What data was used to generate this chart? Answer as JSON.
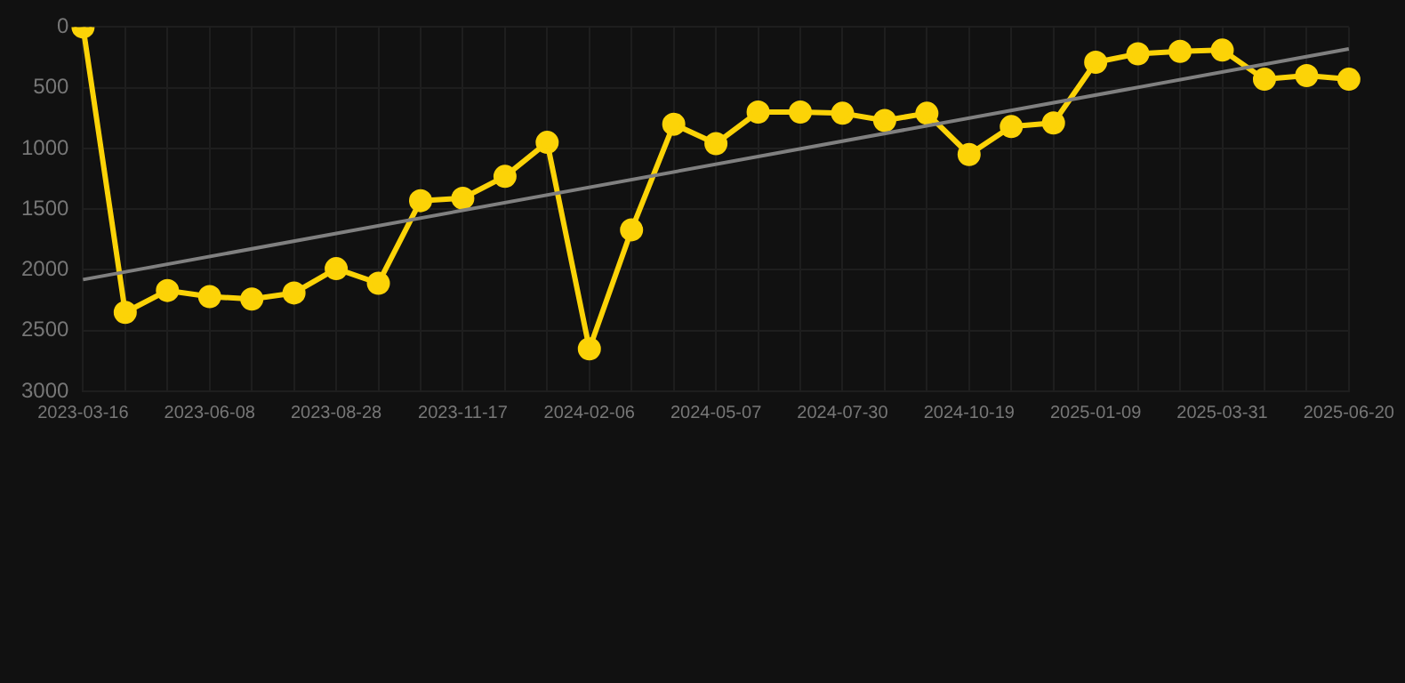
{
  "chart_data": {
    "type": "line",
    "categories": [
      "2023-03-16",
      null,
      null,
      "2023-06-08",
      null,
      null,
      "2023-08-28",
      null,
      null,
      "2023-11-17",
      null,
      null,
      "2024-02-06",
      null,
      null,
      "2024-05-07",
      null,
      null,
      "2024-07-30",
      null,
      null,
      "2024-10-19",
      null,
      null,
      "2025-01-09",
      null,
      null,
      "2025-03-31",
      null,
      null,
      "2025-06-20"
    ],
    "series": [
      {
        "color": "#fcd307",
        "marker": "circle",
        "values": [
          0,
          2350,
          2170,
          2220,
          2240,
          2190,
          1990,
          2110,
          1430,
          1410,
          1230,
          950,
          2650,
          1670,
          800,
          960,
          700,
          700,
          710,
          770,
          710,
          1050,
          820,
          790,
          290,
          220,
          200,
          190,
          430,
          400,
          430
        ]
      },
      {
        "color": "#808080",
        "marker": "none",
        "values": [
          2080,
          null,
          null,
          null,
          null,
          null,
          null,
          null,
          null,
          null,
          null,
          null,
          null,
          null,
          null,
          null,
          null,
          null,
          null,
          null,
          null,
          null,
          null,
          null,
          null,
          null,
          null,
          null,
          null,
          null,
          180
        ]
      }
    ],
    "ylim": [
      3000,
      0
    ],
    "yticks": [
      0,
      500,
      1000,
      1500,
      2000,
      2500,
      3000
    ],
    "grid": true,
    "legend": false
  }
}
